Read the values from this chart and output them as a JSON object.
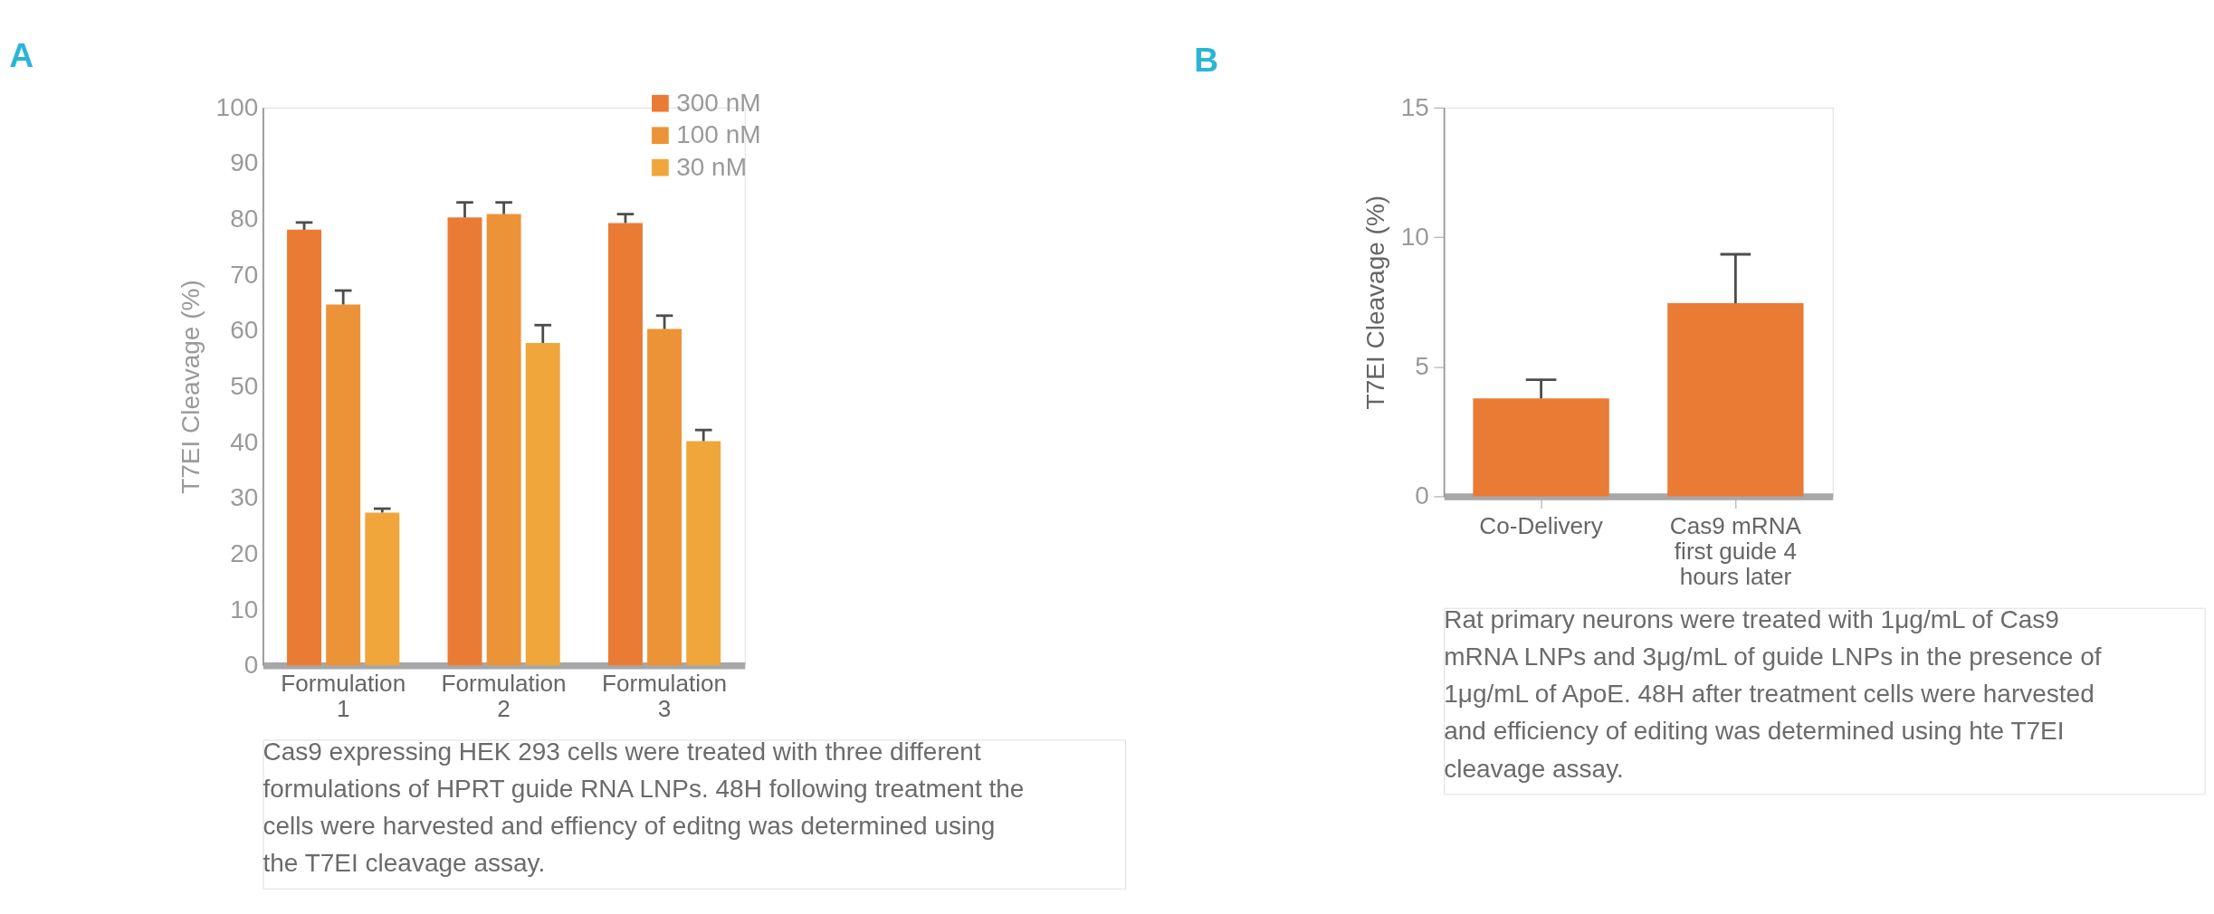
{
  "chart_data": [
    {
      "type": "bar",
      "title": "A",
      "ylabel": "T7EI Cleavage (%)",
      "categories": [
        "Formulation 1",
        "Formulation 2",
        "Formulation 3"
      ],
      "series": [
        {
          "name": "300 nM",
          "color": "#e97b35",
          "values": [
            78.1,
            80.3,
            79.3
          ],
          "errors": [
            [
              78.1,
              79.4
            ],
            [
              80.3,
              83.0
            ],
            [
              79.3,
              80.9
            ]
          ]
        },
        {
          "name": "100 nM",
          "color": "#ed9337",
          "values": [
            64.7,
            80.9,
            60.3
          ],
          "errors": [
            [
              64.7,
              67.2
            ],
            [
              80.9,
              83.0
            ],
            [
              60.3,
              62.7
            ]
          ]
        },
        {
          "name": "30 nM",
          "color": "#f0a63b",
          "values": [
            27.4,
            57.8,
            40.2
          ],
          "errors": [
            [
              27.4,
              28.1
            ],
            [
              57.8,
              61.0
            ],
            [
              40.2,
              42.2
            ]
          ]
        }
      ],
      "ylim": [
        0,
        100
      ],
      "yticks": [
        0,
        10,
        20,
        30,
        40,
        50,
        60,
        70,
        80,
        90,
        100
      ],
      "legend": "top right",
      "grid": false,
      "annotations": [
        "Cas9 expressing HEK 293 cells were treated with three different formulations of HPRT guide RNA LNPs. 48H following treatment the cells were harvested and effiency of editng was determined using the T7EI cleavage assay."
      ]
    },
    {
      "type": "bar",
      "title": "B",
      "ylabel": "T7EI Cleavage (%)",
      "categories": [
        "Co-Delivery",
        "Cas9 mRNA first guide 4 hours later"
      ],
      "color": "#e97b35",
      "values": [
        3.78,
        7.45
      ],
      "errors": [
        [
          3.78,
          4.5
        ],
        [
          7.45,
          9.34
        ]
      ],
      "ylim": [
        0,
        15
      ],
      "yticks": [
        0,
        5,
        10,
        15
      ],
      "legend": false,
      "grid": false,
      "annotations": [
        "Rat primary neurons were treated with 1μg/mL of Cas9 mRNA LNPs and 3μg/mL of guide LNPs in the presence of 1μg/mL of ApoE. 48H after treatment cells were harvested and efficiency of editing was determined using hte T7EI cleavage assay."
      ]
    }
  ]
}
